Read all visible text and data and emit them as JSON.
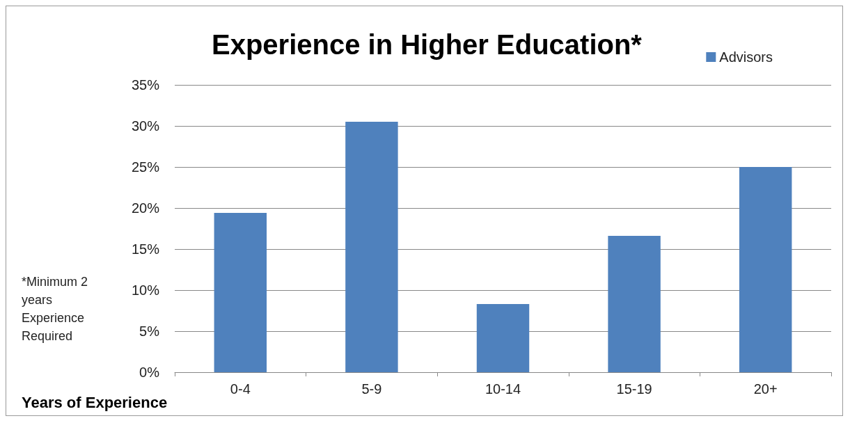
{
  "chart_data": {
    "type": "bar",
    "title": "Experience in Higher Education*",
    "xlabel": "Years of Experience",
    "categories": [
      "0-4",
      "5-9",
      "10-14",
      "15-19",
      "20+"
    ],
    "series": [
      {
        "name": "Advisors",
        "color": "#4f81bd",
        "values": [
          19.4,
          30.5,
          8.3,
          16.6,
          25.0
        ]
      }
    ],
    "ylim": [
      0,
      35
    ],
    "yticks": [
      {
        "value": 0,
        "label": "0%"
      },
      {
        "value": 5,
        "label": "5%"
      },
      {
        "value": 10,
        "label": "10%"
      },
      {
        "value": 15,
        "label": "15%"
      },
      {
        "value": 20,
        "label": "20%"
      },
      {
        "value": 25,
        "label": "25%"
      },
      {
        "value": 30,
        "label": "30%"
      },
      {
        "value": 35,
        "label": "35%"
      }
    ],
    "grid": "y",
    "legend": "top right",
    "annotations": [
      "*Minimum 2 years Experience Required"
    ]
  }
}
